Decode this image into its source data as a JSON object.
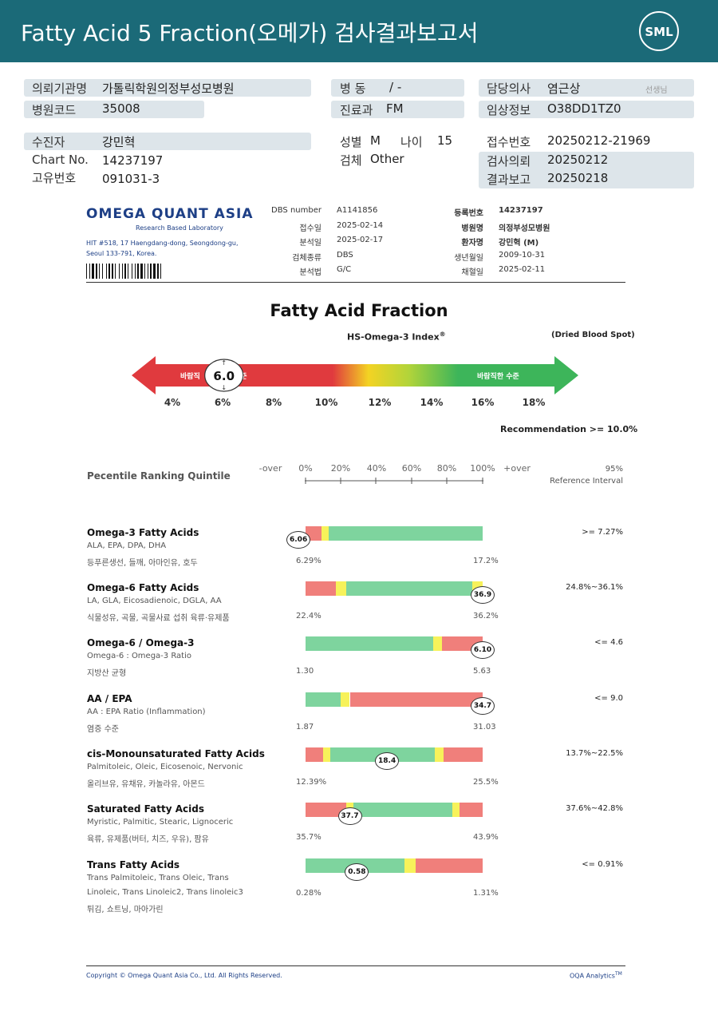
{
  "header": {
    "title": "Fatty Acid 5 Fraction(오메가) 검사결과보고서",
    "logo_text": "SML"
  },
  "patient_info": {
    "institution_label": "의뢰기관명",
    "institution": "가톨릭학원의정부성모병원",
    "hospital_code_label": "병원코드",
    "hospital_code": "35008",
    "ward_label": "병 동",
    "ward": "/ -",
    "dept_label": "진료과",
    "dept": "FM",
    "doctor_label": "담당의사",
    "doctor": "염근상",
    "doctor_suffix": "선생님",
    "clinical_label": "임상정보",
    "clinical": "O38DD1TZ0",
    "patient_label": "수진자",
    "patient": "강민혁",
    "chart_label": "Chart No.",
    "chart": "14237197",
    "unique_label": "고유번호",
    "unique": "091031-3",
    "sex_label": "성별",
    "sex": "M",
    "age_label": "나이",
    "age": "15",
    "specimen_label": "검체",
    "specimen": "Other",
    "receipt_label": "접수번호",
    "receipt": "20250212-21969",
    "request_label": "검사의뢰",
    "request": "20250212",
    "report_label": "결과보고",
    "report": "20250218"
  },
  "lab": {
    "name": "OMEGA QUANT ASIA",
    "tagline": "Research Based Laboratory",
    "address_1": "HIT #518, 17 Haengdang-dong, Seongdong-gu,",
    "address_2": "Seoul 133-791, Korea.",
    "dbs_label": "DBS number",
    "dbs": "A1141856",
    "received_label": "접수일",
    "received": "2025-02-14",
    "analyzed_label": "분석일",
    "analyzed": "2025-02-17",
    "sample_type_label": "검체종류",
    "sample_type": "DBS",
    "method_label": "분석법",
    "method": "G/C",
    "reg_label": "등록번호",
    "reg": "14237197",
    "hospital_label": "병원명",
    "hospital": "의정부성모병원",
    "patient_label": "환자명",
    "patient": "강민혁 (M)",
    "dob_label": "생년월일",
    "dob": "2009-10-31",
    "collected_label": "채혈일",
    "collected": "2025-02-11"
  },
  "section_title": "Fatty Acid Fraction",
  "index_panel": {
    "name": "HS-Omega-3 Index",
    "sup": "®",
    "note": "(Dried Blood Spot)",
    "value": 6.0,
    "value_label": "6.0",
    "left_text_a": "바람직",
    "left_text_b": "수준",
    "right_text": "바람직한 수준",
    "axis": [
      "4%",
      "6%",
      "8%",
      "10%",
      "12%",
      "14%",
      "16%",
      "18%"
    ],
    "recommendation": "Recommendation  >= 10.0%",
    "colors": {
      "red": "#e03a3e",
      "yellow": "#f2e22a",
      "green": "#3db55a"
    }
  },
  "quintile_header": {
    "label": "Pecentile Ranking Quintile",
    "ticks": [
      "-over",
      "0%",
      "20%",
      "40%",
      "60%",
      "80%",
      "100%",
      "+over"
    ],
    "ref_title": "95%",
    "ref_sub": "Reference Interval"
  },
  "results": [
    {
      "title": "Omega-3 Fatty Acids",
      "sub1": "ALA, EPA, DPA, DHA",
      "sub2": "등푸른생선, 들깨, 아마인유, 호두",
      "sub3": "",
      "low": "6.29%",
      "high": "17.2%",
      "ref": ">= 7.27%",
      "value": "6.06",
      "pos": -0.04,
      "segments": [
        [
          "red",
          0,
          0.09
        ],
        [
          "yellow",
          0.09,
          0.13
        ],
        [
          "green",
          0.13,
          1.0
        ]
      ]
    },
    {
      "title": "Omega-6 Fatty Acids",
      "sub1": "LA, GLA, Eicosadienoic, DGLA, AA",
      "sub2": "식물성유, 곡물, 곡물사료 섭취 육류·유제품",
      "sub3": "",
      "low": "22.4%",
      "high": "36.2%",
      "ref": "24.8%~36.1%",
      "value": "36.9",
      "pos": 1.0,
      "segments": [
        [
          "red",
          0,
          0.17
        ],
        [
          "yellow",
          0.17,
          0.23
        ],
        [
          "green",
          0.23,
          0.94
        ],
        [
          "yellow",
          0.94,
          1.0
        ]
      ]
    },
    {
      "title": "Omega-6 / Omega-3",
      "sub1": "Omega-6 : Omega-3 Ratio",
      "sub2": "지방산 균형",
      "sub3": "",
      "low": "1.30",
      "high": "5.63",
      "ref": "<= 4.6",
      "value": "6.10",
      "pos": 1.0,
      "segments": [
        [
          "green",
          0,
          0.72
        ],
        [
          "yellow",
          0.72,
          0.77
        ],
        [
          "red",
          0.77,
          1.0
        ]
      ]
    },
    {
      "title": "AA / EPA",
      "sub1": "AA : EPA Ratio (Inflammation)",
      "sub2": "염증 수준",
      "sub3": "",
      "low": "1.87",
      "high": "31.03",
      "ref": "<= 9.0",
      "value": "34.7",
      "pos": 1.0,
      "segments": [
        [
          "green",
          0,
          0.2
        ],
        [
          "yellow",
          0.2,
          0.25
        ],
        [
          "red",
          0.25,
          1.0
        ]
      ]
    },
    {
      "title": "cis-Monounsaturated Fatty Acids",
      "sub1": "Palmitoleic, Oleic, Eicosenoic, Nervonic",
      "sub2": "올리브유, 유채유, 카놀라유, 아몬드",
      "sub3": "",
      "low": "12.39%",
      "high": "25.5%",
      "ref": "13.7%~22.5%",
      "value": "18.4",
      "pos": 0.46,
      "segments": [
        [
          "red",
          0,
          0.1
        ],
        [
          "yellow",
          0.1,
          0.14
        ],
        [
          "green",
          0.14,
          0.73
        ],
        [
          "yellow",
          0.73,
          0.78
        ],
        [
          "red",
          0.78,
          1.0
        ]
      ]
    },
    {
      "title": "Saturated Fatty Acids",
      "sub1": "Myristic, Palmitic, Stearic, Lignoceric",
      "sub2": "육류, 유제품(버터, 치즈, 우유), 팜유",
      "sub3": "",
      "low": "35.7%",
      "high": "43.9%",
      "ref": "37.6%~42.8%",
      "value": "37.7",
      "pos": 0.25,
      "segments": [
        [
          "red",
          0,
          0.23
        ],
        [
          "yellow",
          0.23,
          0.27
        ],
        [
          "green",
          0.27,
          0.83
        ],
        [
          "yellow",
          0.83,
          0.87
        ],
        [
          "red",
          0.87,
          1.0
        ]
      ]
    },
    {
      "title": "Trans Fatty Acids",
      "sub1": "Trans Palmitoleic, Trans Oleic, Trans",
      "sub2": "Linoleic, Trans Linoleic2, Trans linoleic3",
      "sub3": "튀김, 쇼트닝, 마아가린",
      "low": "0.28%",
      "high": "1.31%",
      "ref": "<= 0.91%",
      "value": "0.58",
      "pos": 0.29,
      "segments": [
        [
          "green",
          0,
          0.56
        ],
        [
          "yellow",
          0.56,
          0.62
        ],
        [
          "red",
          0.62,
          1.0
        ]
      ]
    }
  ],
  "bar_colors": {
    "red": "#f07f7b",
    "yellow": "#f7f25a",
    "green": "#7ed49e"
  },
  "footer": {
    "copyright": "Copyright © Omega Quant Asia Co., Ltd.  All Rights Reserved.",
    "brand": "OQA Analytics",
    "brand_sup": "TM"
  }
}
